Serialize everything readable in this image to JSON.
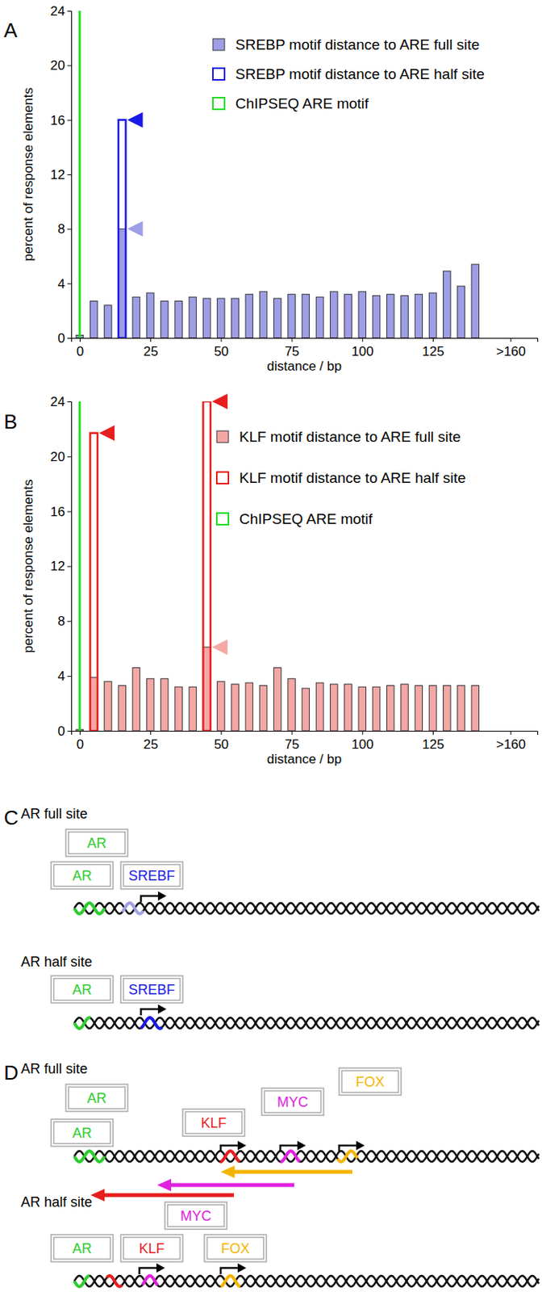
{
  "chart_data": [
    {
      "type": "bar",
      "title": "A",
      "xlabel": "distance / bp",
      "ylabel": "percent of response elements",
      "x": [
        0,
        5,
        10,
        15,
        20,
        25,
        30,
        35,
        40,
        45,
        50,
        55,
        60,
        65,
        70,
        75,
        80,
        85,
        90,
        95,
        100,
        105,
        110,
        115,
        120,
        125,
        130,
        135,
        140
      ],
      "xlim": [
        -3,
        162
      ],
      "xticks": [
        0,
        25,
        50,
        75,
        100,
        125,
        {
          "value": 152.5,
          "label": ">160"
        }
      ],
      "ylim": [
        0,
        24
      ],
      "yticks": [
        0,
        4,
        8,
        12,
        16,
        20,
        24
      ],
      "grid": false,
      "legend": "upper right",
      "series": [
        {
          "name": "SREBP motif distance to ARE full site",
          "color": "#9e9ee6",
          "marker": "filled",
          "values": [
            0.2,
            2.7,
            2.4,
            8,
            3,
            3.3,
            2.7,
            2.7,
            3,
            2.9,
            2.9,
            2.9,
            3.2,
            3.4,
            2.9,
            3.2,
            3.2,
            3,
            3.4,
            3.2,
            3.4,
            3.1,
            3.2,
            3.1,
            3.2,
            3.3,
            4.9,
            3.8,
            5.4
          ]
        },
        {
          "name": "SREBP motif distance to ARE half site",
          "color": "#1a1ae6",
          "marker": "hollow",
          "values": [
            null,
            null,
            null,
            16,
            null,
            null,
            null,
            null,
            null,
            null,
            null,
            null,
            null,
            null,
            null,
            null,
            null,
            null,
            null,
            null,
            null,
            null,
            null,
            null,
            null,
            null,
            null,
            null,
            null
          ]
        },
        {
          "name": "ChIPSEQ ARE motif",
          "color": "#22dd22",
          "marker": "line",
          "values": [
            24,
            null,
            null,
            null,
            null,
            null,
            null,
            null,
            null,
            null,
            null,
            null,
            null,
            null,
            null,
            null,
            null,
            null,
            null,
            null,
            null,
            null,
            null,
            null,
            null,
            null,
            null,
            null,
            null
          ]
        }
      ]
    },
    {
      "type": "bar",
      "title": "B",
      "xlabel": "distance / bp",
      "ylabel": "percent of response elements",
      "x": [
        0,
        5,
        10,
        15,
        20,
        25,
        30,
        35,
        40,
        45,
        50,
        55,
        60,
        65,
        70,
        75,
        80,
        85,
        90,
        95,
        100,
        105,
        110,
        115,
        120,
        125,
        130,
        135,
        140
      ],
      "xlim": [
        -3,
        162
      ],
      "xticks": [
        0,
        25,
        50,
        75,
        100,
        125,
        {
          "value": 152.5,
          "label": ">160"
        }
      ],
      "ylim": [
        0,
        24
      ],
      "yticks": [
        0,
        4,
        8,
        12,
        16,
        20,
        24
      ],
      "grid": false,
      "legend": "upper right",
      "series": [
        {
          "name": "KLF motif distance to ARE full site",
          "color": "#f4a8a6",
          "marker": "filled",
          "values": [
            0.1,
            3.9,
            3.6,
            3.3,
            4.6,
            3.8,
            3.8,
            3.2,
            3.2,
            6.1,
            3.6,
            3.4,
            3.5,
            3.3,
            4.6,
            3.8,
            3.1,
            3.5,
            3.4,
            3.4,
            3.2,
            3.2,
            3.3,
            3.4,
            3.3,
            3.3,
            3.3,
            3.3,
            3.3
          ]
        },
        {
          "name": "KLF motif distance to ARE half site",
          "color": "#e61e1e",
          "marker": "hollow",
          "values": [
            null,
            21.7,
            null,
            null,
            null,
            null,
            null,
            null,
            null,
            24,
            null,
            null,
            null,
            null,
            null,
            null,
            null,
            null,
            null,
            null,
            null,
            null,
            null,
            null,
            null,
            null,
            null,
            null,
            null
          ]
        },
        {
          "name": "ChIPSEQ ARE motif",
          "color": "#22dd22",
          "marker": "line",
          "values": [
            24,
            null,
            null,
            null,
            null,
            null,
            null,
            null,
            null,
            null,
            null,
            null,
            null,
            null,
            null,
            null,
            null,
            null,
            null,
            null,
            null,
            null,
            null,
            null,
            null,
            null,
            null,
            null,
            null
          ]
        }
      ]
    }
  ],
  "diagrams": {
    "C": {
      "label": "C",
      "rows": [
        {
          "title": "AR full site",
          "boxes": [
            "AR",
            "AR",
            "SREBF"
          ]
        },
        {
          "title": "AR half site",
          "boxes": [
            "AR",
            "SREBF"
          ]
        }
      ]
    },
    "D": {
      "label": "D",
      "rows": [
        {
          "title": "AR full site",
          "boxes": [
            "AR",
            "AR",
            "KLF",
            "MYC",
            "FOX"
          ]
        },
        {
          "title": "AR half site",
          "boxes": [
            "AR",
            "KLF",
            "MYC",
            "FOX"
          ]
        }
      ]
    }
  }
}
